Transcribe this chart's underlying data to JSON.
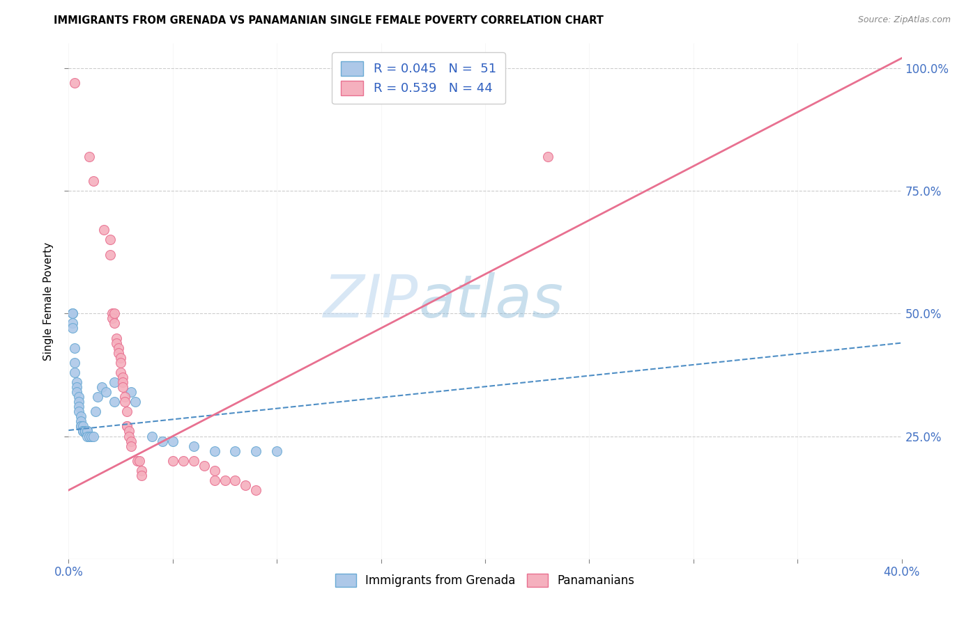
{
  "title": "IMMIGRANTS FROM GRENADA VS PANAMANIAN SINGLE FEMALE POVERTY CORRELATION CHART",
  "source": "Source: ZipAtlas.com",
  "ylabel": "Single Female Poverty",
  "legend_blue_label": "R = 0.045   N =  51",
  "legend_pink_label": "R = 0.539   N = 44",
  "legend_series1": "Immigrants from Grenada",
  "legend_series2": "Panamanians",
  "blue_color": "#adc8e8",
  "pink_color": "#f5b0be",
  "blue_edge_color": "#6aaad4",
  "pink_edge_color": "#e87090",
  "blue_line_color": "#4e8ec5",
  "pink_line_color": "#e87090",
  "blue_scatter": [
    [
      0.002,
      0.48
    ],
    [
      0.002,
      0.47
    ],
    [
      0.002,
      0.5
    ],
    [
      0.002,
      0.5
    ],
    [
      0.003,
      0.43
    ],
    [
      0.003,
      0.4
    ],
    [
      0.003,
      0.38
    ],
    [
      0.004,
      0.36
    ],
    [
      0.004,
      0.35
    ],
    [
      0.004,
      0.34
    ],
    [
      0.005,
      0.33
    ],
    [
      0.005,
      0.32
    ],
    [
      0.005,
      0.31
    ],
    [
      0.005,
      0.3
    ],
    [
      0.006,
      0.29
    ],
    [
      0.006,
      0.28
    ],
    [
      0.006,
      0.27
    ],
    [
      0.006,
      0.27
    ],
    [
      0.007,
      0.27
    ],
    [
      0.007,
      0.26
    ],
    [
      0.007,
      0.26
    ],
    [
      0.007,
      0.26
    ],
    [
      0.008,
      0.26
    ],
    [
      0.008,
      0.26
    ],
    [
      0.008,
      0.26
    ],
    [
      0.008,
      0.26
    ],
    [
      0.008,
      0.26
    ],
    [
      0.009,
      0.26
    ],
    [
      0.009,
      0.26
    ],
    [
      0.009,
      0.26
    ],
    [
      0.009,
      0.26
    ],
    [
      0.009,
      0.25
    ],
    [
      0.01,
      0.25
    ],
    [
      0.011,
      0.25
    ],
    [
      0.012,
      0.25
    ],
    [
      0.013,
      0.3
    ],
    [
      0.014,
      0.33
    ],
    [
      0.016,
      0.35
    ],
    [
      0.018,
      0.34
    ],
    [
      0.022,
      0.36
    ],
    [
      0.022,
      0.32
    ],
    [
      0.03,
      0.34
    ],
    [
      0.032,
      0.32
    ],
    [
      0.04,
      0.25
    ],
    [
      0.045,
      0.24
    ],
    [
      0.05,
      0.24
    ],
    [
      0.06,
      0.23
    ],
    [
      0.07,
      0.22
    ],
    [
      0.08,
      0.22
    ],
    [
      0.09,
      0.22
    ],
    [
      0.1,
      0.22
    ]
  ],
  "pink_scatter": [
    [
      0.003,
      0.97
    ],
    [
      0.01,
      0.82
    ],
    [
      0.012,
      0.77
    ],
    [
      0.017,
      0.67
    ],
    [
      0.02,
      0.65
    ],
    [
      0.02,
      0.62
    ],
    [
      0.021,
      0.5
    ],
    [
      0.021,
      0.49
    ],
    [
      0.022,
      0.5
    ],
    [
      0.022,
      0.48
    ],
    [
      0.023,
      0.45
    ],
    [
      0.023,
      0.44
    ],
    [
      0.024,
      0.43
    ],
    [
      0.024,
      0.42
    ],
    [
      0.025,
      0.41
    ],
    [
      0.025,
      0.4
    ],
    [
      0.025,
      0.38
    ],
    [
      0.026,
      0.37
    ],
    [
      0.026,
      0.36
    ],
    [
      0.026,
      0.35
    ],
    [
      0.027,
      0.33
    ],
    [
      0.027,
      0.32
    ],
    [
      0.028,
      0.3
    ],
    [
      0.028,
      0.27
    ],
    [
      0.028,
      0.27
    ],
    [
      0.029,
      0.26
    ],
    [
      0.029,
      0.25
    ],
    [
      0.03,
      0.24
    ],
    [
      0.03,
      0.23
    ],
    [
      0.033,
      0.2
    ],
    [
      0.034,
      0.2
    ],
    [
      0.035,
      0.18
    ],
    [
      0.035,
      0.17
    ],
    [
      0.05,
      0.2
    ],
    [
      0.055,
      0.2
    ],
    [
      0.06,
      0.2
    ],
    [
      0.065,
      0.19
    ],
    [
      0.07,
      0.18
    ],
    [
      0.07,
      0.16
    ],
    [
      0.075,
      0.16
    ],
    [
      0.08,
      0.16
    ],
    [
      0.085,
      0.15
    ],
    [
      0.09,
      0.14
    ],
    [
      0.23,
      0.82
    ]
  ],
  "xlim": [
    0.0,
    0.4
  ],
  "ylim": [
    0.0,
    1.05
  ],
  "blue_trend_x": [
    0.0,
    0.4
  ],
  "blue_trend_y": [
    0.262,
    0.44
  ],
  "pink_trend_x": [
    0.0,
    0.4
  ],
  "pink_trend_y": [
    0.14,
    1.02
  ]
}
